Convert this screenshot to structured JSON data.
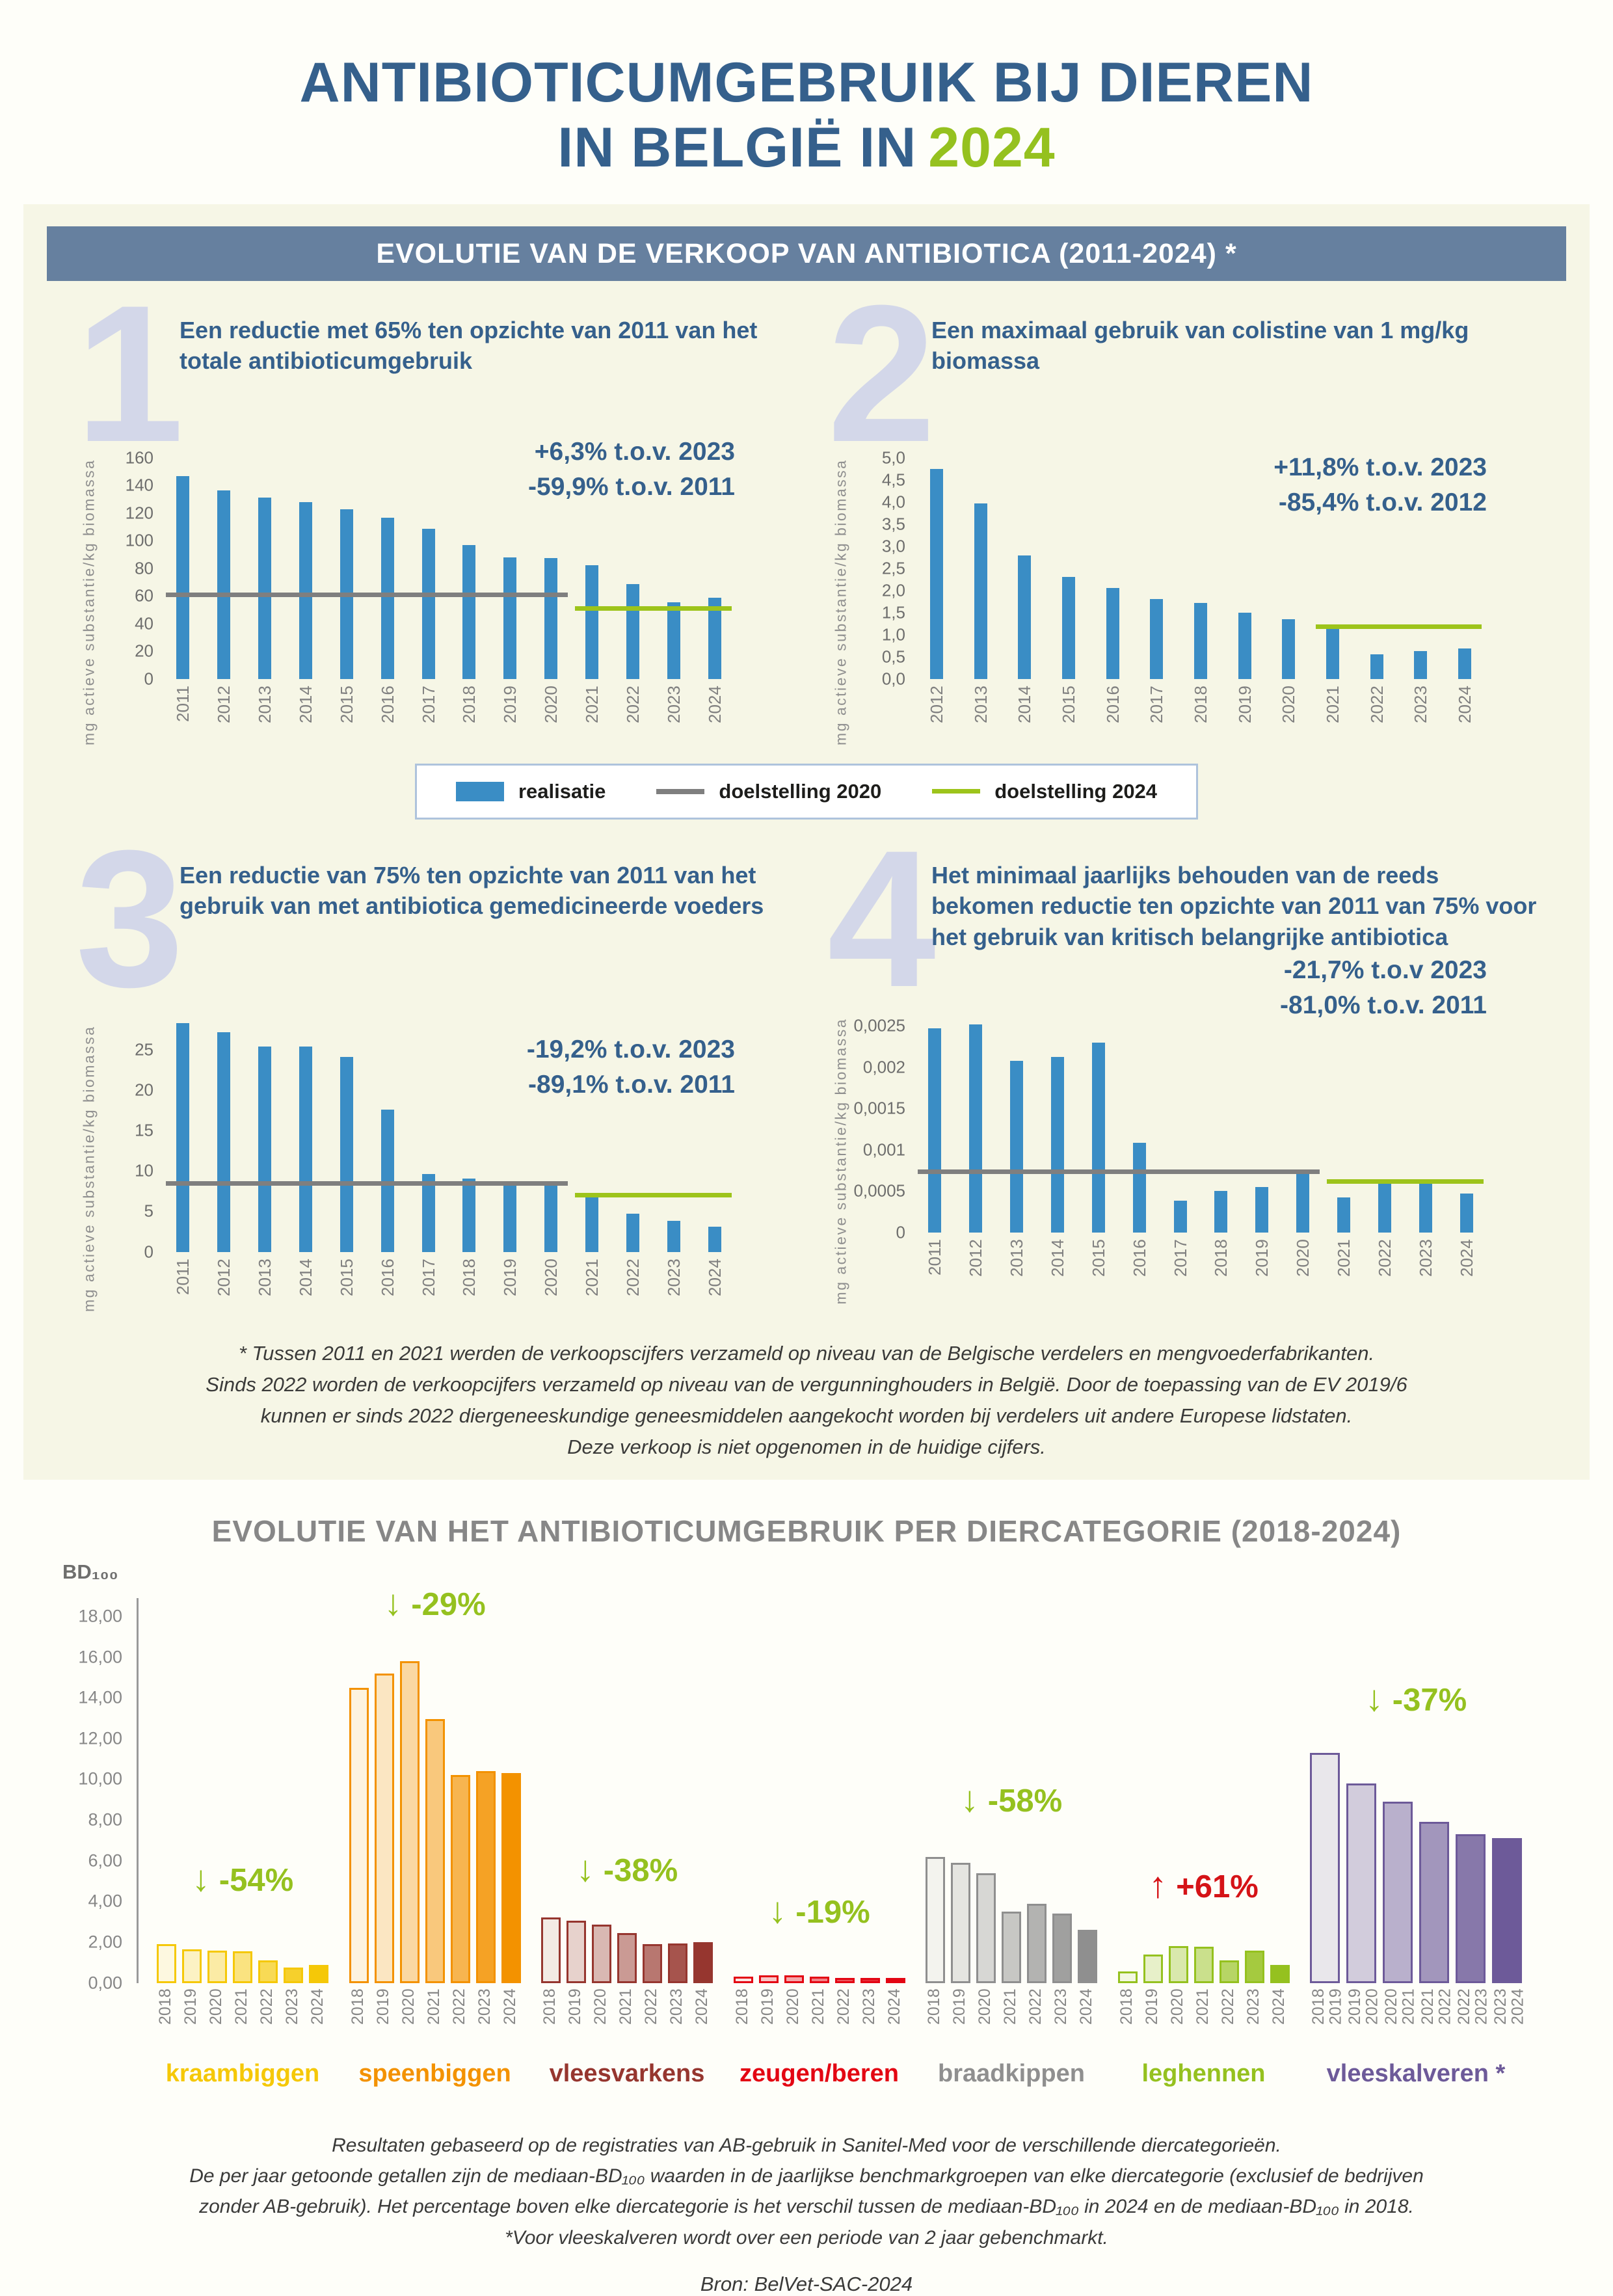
{
  "page": {
    "title": {
      "line1": "ANTIBIOTICUMGEBRUIK BIJ DIEREN",
      "line2_prefix": "IN BELGIË IN",
      "year": "2024"
    },
    "section1": {
      "header": "EVOLUTIE VAN DE VERKOOP VAN ANTIBIOTICA (2011-2024) *",
      "footnote_lines": [
        "* Tussen 2011 en 2021 werden de verkoopscijfers verzameld op niveau van de Belgische verdelers en mengvoederfabrikanten.",
        "Sinds 2022 worden de verkoopcijfers verzameld op niveau van de vergunninghouders in België. Door de toepassing van de EV 2019/6",
        "kunnen er sinds 2022 diergeneeskundige geneesmiddelen aangekocht worden bij verdelers uit andere Europese lidstaten.",
        "Deze verkoop is niet opgenomen in de huidige cijfers."
      ]
    },
    "legend": {
      "realisatie": "realisatie",
      "doelstelling_2020": "doelstelling 2020",
      "doelstelling_2024": "doelstelling 2024"
    },
    "section2": {
      "footnote_lines": [
        "Resultaten gebaseerd op de registraties van AB-gebruik in Sanitel-Med voor de verschillende diercategorieën.",
        "De per jaar getoonde getallen zijn de mediaan-BD₁₀₀ waarden in de jaarlijkse benchmarkgroepen van elke diercategorie (exclusief de bedrijven",
        "zonder AB-gebruik). Het percentage boven elke diercategorie is het verschil tussen de mediaan-BD₁₀₀ in 2024 en de mediaan-BD₁₀₀ in 2018.",
        "*Voor vleeskalveren wordt over een periode van 2 jaar gebenchmarkt."
      ],
      "source": "Bron: BelVet-SAC-2024"
    },
    "colors": {
      "steel_blue": "#35608C",
      "accent_green": "#95C11F",
      "header_bar": "#66809F",
      "panel_cream": "#F6F6E6",
      "numeral": "#D3D7E9",
      "bar_blue": "#3A8DC5",
      "target_gray": "#7F7F7F",
      "target_green": "#9DC41B",
      "note_red": "#D51317"
    }
  },
  "chart_data": [
    {
      "type": "bar",
      "number": "1",
      "title": "Een reductie met 65% ten opzichte van 2011 van het totale antibioticumgebruik",
      "annotations": [
        "+6,3% t.o.v. 2023",
        "-59,9% t.o.v. 2011"
      ],
      "ylabel": "mg actieve substantie/kg biomassa",
      "ylim": [
        0,
        160
      ],
      "yticks": [
        "160",
        "140",
        "120",
        "100",
        "80",
        "60",
        "40",
        "20",
        "0"
      ],
      "categories": [
        "2011",
        "2012",
        "2013",
        "2014",
        "2015",
        "2016",
        "2017",
        "2018",
        "2019",
        "2020",
        "2021",
        "2022",
        "2023",
        "2024"
      ],
      "values": [
        146.6,
        136.4,
        131.1,
        127.9,
        122.4,
        116.6,
        108.4,
        96.6,
        88.0,
        87.5,
        81.9,
        68.3,
        55.3,
        58.7
      ],
      "targets": [
        {
          "label": "doelstelling 2020",
          "value": 61,
          "from": "2011",
          "to": "2020",
          "color": "gray"
        },
        {
          "label": "doelstelling 2024",
          "value": 51,
          "from": "2021",
          "to": "2024",
          "color": "green"
        }
      ]
    },
    {
      "type": "bar",
      "number": "2",
      "title": "Een maximaal gebruik van colistine van 1 mg/kg biomassa",
      "annotations": [
        "+11,8% t.o.v. 2023",
        "-85,4% t.o.v. 2012"
      ],
      "ylabel": "mg actieve substantie/kg biomassa",
      "ylim": [
        0,
        5.0
      ],
      "yticks": [
        "5,0",
        "4,5",
        "4,0",
        "3,5",
        "3,0",
        "2,5",
        "2,0",
        "1,5",
        "1,0",
        "0,5",
        "0,0"
      ],
      "categories": [
        "2012",
        "2013",
        "2014",
        "2015",
        "2016",
        "2017",
        "2018",
        "2019",
        "2020",
        "2021",
        "2022",
        "2023",
        "2024"
      ],
      "values": [
        4.75,
        3.96,
        2.78,
        2.3,
        2.05,
        1.8,
        1.72,
        1.5,
        1.35,
        1.22,
        0.55,
        0.62,
        0.69
      ],
      "targets": [
        {
          "label": "doelstelling 2024",
          "value": 1.18,
          "from": "2021",
          "to": "2024",
          "color": "green"
        }
      ]
    },
    {
      "type": "bar",
      "number": "3",
      "title": "Een reductie van 75% ten opzichte van 2011 van het gebruik van met antibiotica gemedicineerde voeders",
      "annotations": [
        "-19,2% t.o.v. 2023",
        "-89,1% t.o.v. 2011"
      ],
      "ylabel": "mg actieve substantie/kg biomassa",
      "ylim": [
        0,
        29
      ],
      "yticks": [
        "25",
        "20",
        "15",
        "10",
        "5",
        "0"
      ],
      "categories": [
        "2011",
        "2012",
        "2013",
        "2014",
        "2015",
        "2016",
        "2017",
        "2018",
        "2019",
        "2020",
        "2021",
        "2022",
        "2023",
        "2024"
      ],
      "values": [
        28.3,
        27.2,
        25.4,
        25.4,
        24.1,
        17.6,
        9.6,
        9.1,
        8.6,
        8.3,
        6.9,
        4.7,
        3.8,
        3.1
      ],
      "targets": [
        {
          "label": "doelstelling 2020",
          "value": 8.5,
          "from": "2011",
          "to": "2020",
          "color": "gray"
        },
        {
          "label": "doelstelling 2024",
          "value": 7.07,
          "from": "2021",
          "to": "2024",
          "color": "green"
        }
      ]
    },
    {
      "type": "bar",
      "number": "4",
      "title": "Het minimaal jaarlijks behouden van de reeds bekomen reductie ten opzichte van 2011 van 75% voor het gebruik van kritisch belangrijke antibiotica",
      "annotations": [
        "-21,7% t.o.v 2023",
        "-81,0% t.o.v. 2011"
      ],
      "ylabel": "mg actieve substantie/kg biomassa",
      "ylim": [
        0,
        0.0026
      ],
      "yticks": [
        "0,0025",
        "0,002",
        "0,0015",
        "0,001",
        "0,0005",
        "0"
      ],
      "categories": [
        "2011",
        "2012",
        "2013",
        "2014",
        "2015",
        "2016",
        "2017",
        "2018",
        "2019",
        "2020",
        "2021",
        "2022",
        "2023",
        "2024"
      ],
      "values": [
        0.00247,
        0.00252,
        0.00208,
        0.00212,
        0.0023,
        0.00108,
        0.00038,
        0.0005,
        0.00055,
        0.00073,
        0.00042,
        0.00062,
        0.0006,
        0.00047
      ],
      "targets": [
        {
          "label": "doelstelling 2020",
          "value": 0.00074,
          "from": "2011",
          "to": "2020",
          "color": "gray"
        },
        {
          "label": "doelstelling 2024",
          "value": 0.00062,
          "from": "2021",
          "to": "2024",
          "color": "green"
        }
      ]
    },
    {
      "type": "bar",
      "title": "EVOLUTIE VAN HET ANTIBIOTICUMGEBRUIK PER DIERCATEGORIE (2018-2024)",
      "ylabel": "BD₁₀₀",
      "ylim": [
        0,
        18.9
      ],
      "yticks": [
        "18,00",
        "16,00",
        "14,00",
        "12,00",
        "10,00",
        "8,00",
        "6,00",
        "4,00",
        "2,00",
        "0,00"
      ],
      "groups": [
        {
          "label": "kraambiggen",
          "color": "#F5C808",
          "note": {
            "text": "-54%",
            "direction": "down",
            "color": "#95C11F"
          },
          "note_y": 4.1,
          "years": [
            "2018",
            "2019",
            "2020",
            "2021",
            "2022",
            "2023",
            "2024"
          ],
          "values": [
            1.9,
            1.65,
            1.6,
            1.57,
            1.1,
            0.75,
            0.87
          ]
        },
        {
          "label": "speenbiggen",
          "color": "#F39200",
          "note": {
            "text": "-29%",
            "direction": "down",
            "color": "#95C11F"
          },
          "note_y": 17.65,
          "years": [
            "2018",
            "2019",
            "2020",
            "2021",
            "2022",
            "2023",
            "2024"
          ],
          "values": [
            14.5,
            15.2,
            15.8,
            12.95,
            10.2,
            10.4,
            10.3
          ]
        },
        {
          "label": "vleesvarkens",
          "color": "#96362F",
          "note": {
            "text": "-38%",
            "direction": "down",
            "color": "#95C11F"
          },
          "note_y": 4.6,
          "years": [
            "2018",
            "2019",
            "2020",
            "2021",
            "2022",
            "2023",
            "2024"
          ],
          "values": [
            3.2,
            3.05,
            2.85,
            2.45,
            1.9,
            1.95,
            2.0
          ]
        },
        {
          "label": "zeugen/beren",
          "color": "#E30613",
          "note": {
            "text": "-19%",
            "direction": "down",
            "color": "#95C11F"
          },
          "note_y": 2.55,
          "years": [
            "2018",
            "2019",
            "2020",
            "2021",
            "2022",
            "2023",
            "2024"
          ],
          "values": [
            0.3,
            0.38,
            0.38,
            0.31,
            0.26,
            0.25,
            0.24
          ]
        },
        {
          "label": "braadkippen",
          "color": "#8F8F8F",
          "note": {
            "text": "-58%",
            "direction": "down",
            "color": "#95C11F"
          },
          "note_y": 8.0,
          "years": [
            "2018",
            "2019",
            "2020",
            "2021",
            "2022",
            "2023",
            "2024"
          ],
          "values": [
            6.2,
            5.9,
            5.4,
            3.5,
            3.9,
            3.4,
            2.6
          ]
        },
        {
          "label": "leghennen",
          "color": "#95C11F",
          "note": {
            "text": "+61%",
            "direction": "up",
            "color": "#D51317"
          },
          "note_y": 3.8,
          "years": [
            "2018",
            "2019",
            "2020",
            "2021",
            "2022",
            "2023",
            "2024"
          ],
          "values": [
            0.55,
            1.38,
            1.8,
            1.77,
            1.11,
            1.6,
            0.89
          ]
        },
        {
          "label": "vleeskalveren *",
          "color": "#6D5A99",
          "note": {
            "text": "-37%",
            "direction": "down",
            "color": "#95C11F"
          },
          "note_y": 12.95,
          "years": [
            [
              "2018",
              "2019"
            ],
            [
              "2019",
              "2020"
            ],
            [
              "2020",
              "2021"
            ],
            [
              "2021",
              "2022"
            ],
            [
              "2022",
              "2023"
            ],
            [
              "2023",
              "2024"
            ]
          ],
          "values": [
            11.3,
            9.8,
            8.9,
            7.9,
            7.3,
            7.1
          ]
        }
      ]
    }
  ]
}
